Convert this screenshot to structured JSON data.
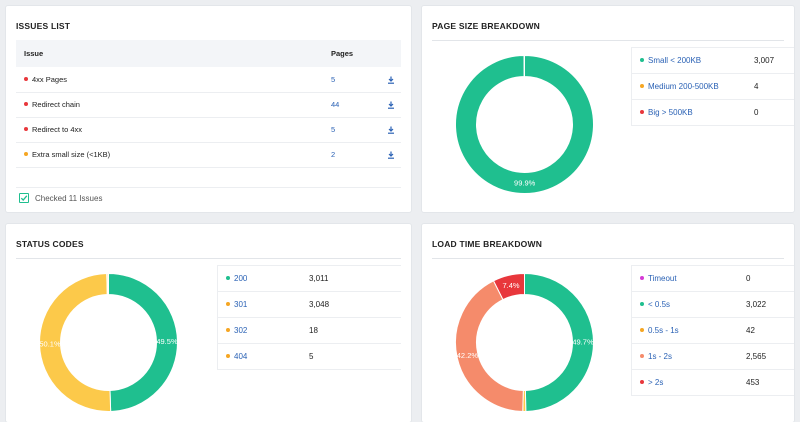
{
  "issues": {
    "title": "ISSUES LIST",
    "col_issue": "Issue",
    "col_pages": "Pages",
    "rows": [
      {
        "label": "4xx Pages",
        "pages": "5",
        "color": "#e8373c"
      },
      {
        "label": "Redirect chain",
        "pages": "44",
        "color": "#e8373c"
      },
      {
        "label": "Redirect to 4xx",
        "pages": "5",
        "color": "#e8373c"
      },
      {
        "label": "Extra small size (<1KB)",
        "pages": "2",
        "color": "#f5a623"
      }
    ],
    "checked_text": "Checked 11 Issues",
    "download_icon": "download-icon",
    "check_icon": "checkbox-checked-icon"
  },
  "page_size": {
    "title": "PAGE SIZE BREAKDOWN",
    "legend": [
      {
        "label": "Small < 200KB",
        "value": "3,007",
        "color": "#1fbf8f"
      },
      {
        "label": "Medium 200-500KB",
        "value": "4",
        "color": "#f5a623"
      },
      {
        "label": "Big > 500KB",
        "value": "0",
        "color": "#e8373c"
      }
    ]
  },
  "status_codes": {
    "title": "STATUS CODES",
    "legend": [
      {
        "label": "200",
        "value": "3,011",
        "color": "#1fbf8f"
      },
      {
        "label": "301",
        "value": "3,048",
        "color": "#f5a623"
      },
      {
        "label": "302",
        "value": "18",
        "color": "#f5a623"
      },
      {
        "label": "404",
        "value": "5",
        "color": "#f5a623"
      }
    ]
  },
  "load_time": {
    "title": "LOAD TIME BREAKDOWN",
    "legend": [
      {
        "label": "Timeout",
        "value": "0",
        "color": "#d63bd6"
      },
      {
        "label": "< 0.5s",
        "value": "3,022",
        "color": "#1fbf8f"
      },
      {
        "label": "0.5s - 1s",
        "value": "42",
        "color": "#f5a623"
      },
      {
        "label": "1s - 2s",
        "value": "2,565",
        "color": "#f58b6b"
      },
      {
        "label": "> 2s",
        "value": "453",
        "color": "#e8373c"
      }
    ]
  },
  "chart_data": [
    {
      "type": "pie",
      "title": "PAGE SIZE BREAKDOWN",
      "series": [
        {
          "name": "Small < 200KB",
          "value": 99.9,
          "color": "#1fbf8f"
        },
        {
          "name": "Medium 200-500KB",
          "value": 0.1,
          "color": "#f5a623"
        },
        {
          "name": "Big > 500KB",
          "value": 0.0,
          "color": "#e8373c"
        }
      ],
      "labels": [
        "99.9%"
      ]
    },
    {
      "type": "pie",
      "title": "STATUS CODES",
      "series": [
        {
          "name": "200",
          "value": 49.5,
          "color": "#1fbf8f"
        },
        {
          "name": "301",
          "value": 50.1,
          "color": "#fcc94a"
        },
        {
          "name": "302",
          "value": 0.3,
          "color": "#fcc94a"
        },
        {
          "name": "404",
          "value": 0.1,
          "color": "#fcc94a"
        }
      ],
      "labels": [
        "49.5%",
        "50.1%"
      ]
    },
    {
      "type": "pie",
      "title": "LOAD TIME BREAKDOWN",
      "series": [
        {
          "name": "Timeout",
          "value": 0.0,
          "color": "#d63bd6"
        },
        {
          "name": "< 0.5s",
          "value": 49.7,
          "color": "#1fbf8f"
        },
        {
          "name": "0.5s - 1s",
          "value": 0.7,
          "color": "#fcc94a"
        },
        {
          "name": "1s - 2s",
          "value": 42.2,
          "color": "#f58b6b"
        },
        {
          "name": "> 2s",
          "value": 7.4,
          "color": "#e8373c"
        }
      ],
      "labels": [
        "49.7%",
        "42.2%",
        "7.4%"
      ]
    }
  ]
}
